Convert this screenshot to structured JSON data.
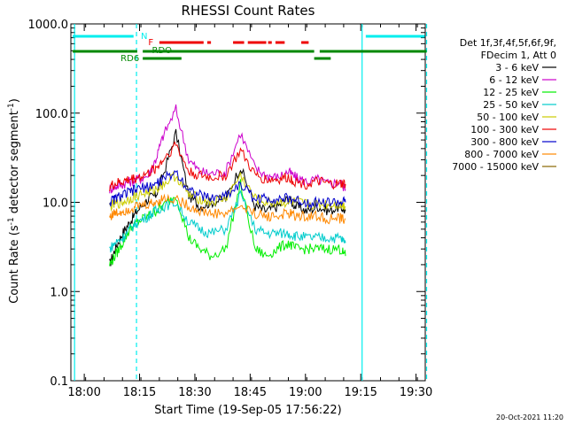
{
  "chart_data": {
    "type": "line",
    "title": "RHESSI Count Rates",
    "xlabel": "Start Time (19-Sep-05 17:56:22)",
    "ylabel_main": "Count Rate (s",
    "ylabel_sup": "-1",
    "ylabel_rest": " detector segment",
    "ylabel_close": ")",
    "y_scale": "log",
    "ylim": [
      0.1,
      1000
    ],
    "xlim": [
      "17:56:22",
      "19:32:30"
    ],
    "y_ticks": [
      "0.1",
      "1.0",
      "10.0",
      "100.0",
      "1000.0"
    ],
    "x_ticks": [
      "18:00",
      "18:15",
      "18:30",
      "18:45",
      "19:00",
      "19:15",
      "19:30"
    ],
    "legend_header": [
      "Det 1f,3f,4f,5f,6f,9f,",
      "FDecim 1, Att 0"
    ],
    "legend_position": "right",
    "series": [
      {
        "name": "3 - 6 keV",
        "color": "#000000",
        "values": [
          2,
          3,
          4.5,
          6,
          8,
          11,
          12,
          20,
          60,
          12,
          9,
          10,
          11,
          25,
          9,
          8,
          9,
          11,
          9,
          8,
          9,
          8,
          9,
          8
        ]
      },
      {
        "name": "6 - 12 keV",
        "color": "#cc00cc",
        "values": [
          14,
          15,
          16,
          17,
          18,
          20,
          30,
          55,
          110,
          30,
          22,
          21,
          22,
          60,
          24,
          20,
          19,
          22,
          19,
          17,
          18,
          16,
          17,
          14
        ]
      },
      {
        "name": "12 - 25 keV",
        "color": "#00ee00",
        "values": [
          2,
          2.5,
          3.5,
          5,
          6,
          7,
          8,
          9,
          12,
          4,
          3,
          2.5,
          3,
          16,
          3,
          2.5,
          3,
          3.5,
          3,
          3,
          3,
          3,
          3,
          2.5
        ]
      },
      {
        "name": "25 - 50 keV",
        "color": "#00cccc",
        "values": [
          3,
          3.5,
          4,
          5,
          6,
          7,
          8,
          9,
          10,
          6,
          5,
          4.5,
          5,
          12,
          5,
          4.5,
          4.5,
          4.5,
          4.2,
          4,
          4,
          4,
          4,
          3.5
        ]
      },
      {
        "name": "50 - 100 keV",
        "color": "#cccc00",
        "values": [
          9,
          9.5,
          10,
          11,
          12,
          13,
          14,
          16,
          20,
          12,
          11,
          10,
          11,
          20,
          11,
          10,
          10,
          10,
          10,
          9.5,
          9.5,
          9.5,
          9.5,
          9
        ]
      },
      {
        "name": "100 - 300 keV",
        "color": "#ee0000",
        "values": [
          15,
          16,
          17,
          18,
          19,
          21,
          24,
          30,
          45,
          22,
          20,
          19,
          20,
          38,
          20,
          18,
          18,
          19,
          17,
          16,
          17,
          16,
          16,
          16
        ]
      },
      {
        "name": "300 - 800 keV",
        "color": "#0000cc",
        "values": [
          10,
          11,
          12,
          13,
          14,
          15,
          16,
          18,
          22,
          14,
          12,
          11,
          12,
          16,
          11,
          11,
          11,
          11,
          10.5,
          10,
          10,
          10,
          10,
          10
        ]
      },
      {
        "name": "800 - 7000 keV",
        "color": "#ff8800",
        "values": [
          7,
          7.5,
          8,
          8.5,
          9,
          9.5,
          10,
          11,
          11,
          9,
          8,
          7.5,
          7.5,
          9,
          7.5,
          7,
          7,
          7.5,
          7,
          7,
          7,
          6.5,
          6.5,
          6.5
        ]
      },
      {
        "name": "7000 - 15000 keV",
        "color": "#886600",
        "values": []
      }
    ],
    "series_x_minutes": [
      10.5,
      12,
      14,
      16,
      18,
      21,
      23,
      25,
      28.5,
      32,
      35,
      38,
      42,
      46,
      50,
      53,
      56,
      59,
      61,
      64,
      67,
      70,
      73,
      74.5
    ],
    "flags": {
      "N_label": "N",
      "F_label": "F",
      "RDO_label": "RDO",
      "RD6_label": "RD6",
      "N_color": "#00eeee",
      "F_color": "#ee0000",
      "RD_color": "#008800"
    },
    "timestamp": "20-Oct-2021 11:20"
  }
}
